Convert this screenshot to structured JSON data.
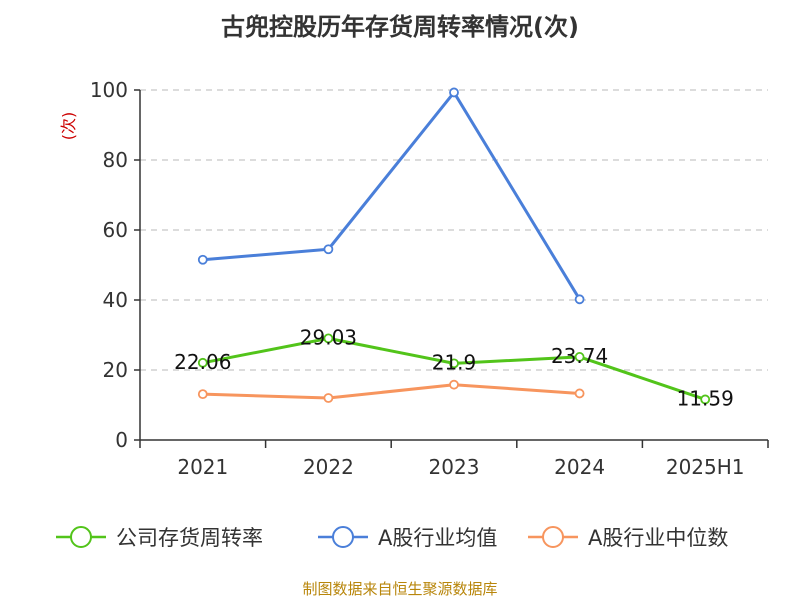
{
  "chart_data": {
    "type": "line",
    "title": "古兜控股历年存货周转率情况(次)",
    "ylabel": "(次)",
    "categories": [
      "2021",
      "2022",
      "2023",
      "2024",
      "2025H1"
    ],
    "ylim": [
      0,
      100
    ],
    "yticks": [
      0,
      20,
      40,
      60,
      80,
      100
    ],
    "grid": true,
    "legend_position": "bottom",
    "series": [
      {
        "name": "公司存货周转率",
        "color": "#52c41a",
        "values": [
          22.06,
          29.03,
          21.9,
          23.74,
          11.59
        ],
        "labels": [
          "22.06",
          "29.03",
          "21.9",
          "23.74",
          "11.59"
        ]
      },
      {
        "name": "A股行业均值",
        "color": "#4a7fd9",
        "values": [
          51.5,
          54.5,
          99.3,
          40.2,
          null
        ]
      },
      {
        "name": "A股行业中位数",
        "color": "#f7955e",
        "values": [
          13.1,
          12.0,
          15.8,
          13.3,
          null
        ]
      }
    ]
  },
  "source": "制图数据来自恒生聚源数据库"
}
